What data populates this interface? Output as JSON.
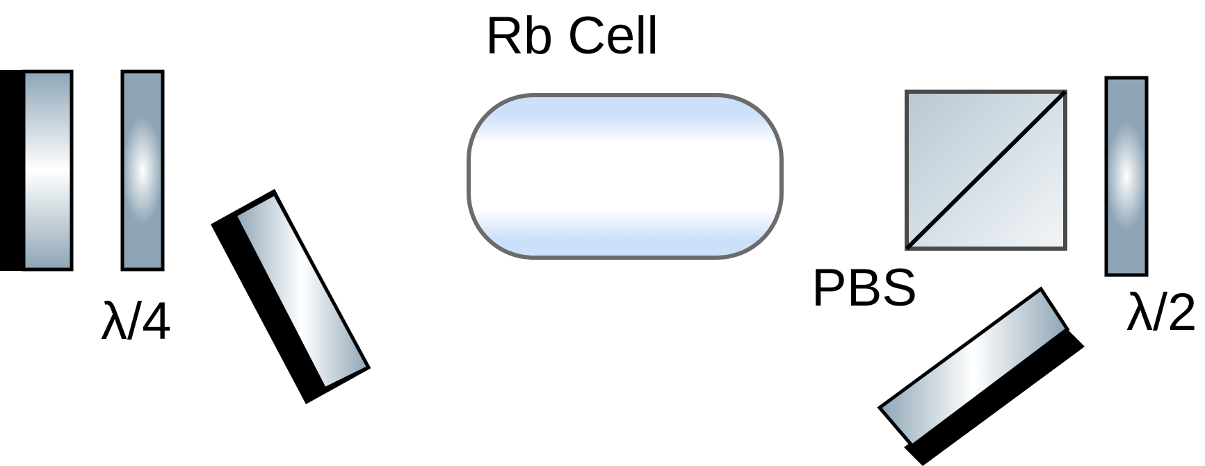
{
  "labels": {
    "rb_cell": "Rb Cell",
    "pbs": "PBS",
    "quarter_wave": "λ/4",
    "half_wave": "λ/2"
  },
  "colors": {
    "optic_steel": "#8ea5b6",
    "optic_highlight": "#ffffff",
    "cell_blue": "#cde0fa",
    "cell_outline": "#666666",
    "cube_fill": "#c2d0da",
    "outline": "#000000",
    "mirror_backing": "#000000"
  }
}
